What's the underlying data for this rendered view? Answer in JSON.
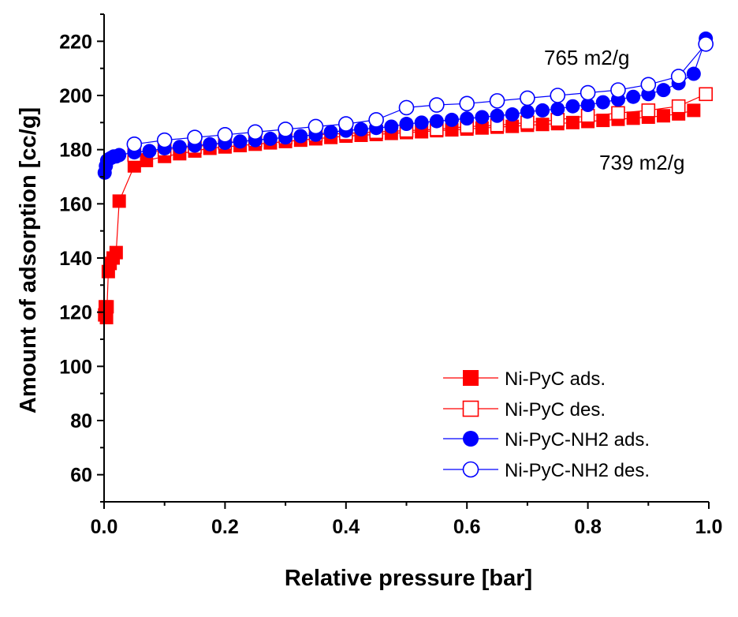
{
  "chart_data": {
    "type": "scatter",
    "title": "",
    "xlabel": "Relative pressure [bar]",
    "ylabel": "Amount of adsorption [cc/g]",
    "xlim": [
      0.0,
      1.0
    ],
    "ylim": [
      50,
      230
    ],
    "xticks": [
      "0.0",
      "0.2",
      "0.4",
      "0.6",
      "0.8",
      "1.0"
    ],
    "xtick_values": [
      0.0,
      0.2,
      0.4,
      0.6,
      0.8,
      1.0
    ],
    "yticks": [
      "60",
      "80",
      "100",
      "120",
      "140",
      "160",
      "180",
      "200",
      "220"
    ],
    "ytick_values": [
      60,
      80,
      100,
      120,
      140,
      160,
      180,
      200,
      220
    ],
    "grid": false,
    "legend_position": "bottom-right",
    "annotations": [
      {
        "text": "765 m2/g",
        "x": 0.73,
        "y": 213
      },
      {
        "text": "739 m2/g",
        "x": 0.82,
        "y": 175
      }
    ],
    "series": [
      {
        "name": "Ni-PyC ads.",
        "color": "#ff0000",
        "marker": "square-filled",
        "x": [
          0.001,
          0.002,
          0.004,
          0.005,
          0.007,
          0.01,
          0.015,
          0.02,
          0.025,
          0.05,
          0.07,
          0.1,
          0.125,
          0.15,
          0.175,
          0.2,
          0.225,
          0.25,
          0.275,
          0.3,
          0.325,
          0.35,
          0.375,
          0.4,
          0.425,
          0.45,
          0.475,
          0.5,
          0.525,
          0.55,
          0.575,
          0.6,
          0.625,
          0.65,
          0.675,
          0.7,
          0.725,
          0.75,
          0.775,
          0.8,
          0.825,
          0.85,
          0.875,
          0.9,
          0.925,
          0.95,
          0.975
        ],
        "y": [
          119,
          122,
          118,
          122,
          135,
          138,
          140,
          142,
          161,
          174,
          176,
          177.5,
          178.5,
          179.5,
          180.5,
          181,
          181.5,
          182,
          182.5,
          183,
          183.5,
          184,
          184.5,
          185,
          185.3,
          185.6,
          186,
          186.3,
          186.6,
          187,
          187.3,
          187.6,
          188,
          188.3,
          188.6,
          189,
          189.3,
          189.6,
          190,
          190.4,
          190.8,
          191.2,
          191.6,
          192,
          192.5,
          193.2,
          194.5
        ]
      },
      {
        "name": "Ni-PyC des.",
        "color": "#ff0000",
        "marker": "square-open",
        "x": [
          0.995,
          0.95,
          0.9,
          0.85,
          0.8,
          0.75,
          0.7,
          0.65,
          0.6,
          0.55,
          0.5,
          0.45,
          0.4,
          0.35,
          0.3,
          0.25,
          0.2,
          0.15,
          0.1,
          0.05
        ],
        "y": [
          200.5,
          196,
          194.5,
          193.5,
          192.5,
          191,
          190,
          189,
          188.5,
          187.5,
          187,
          186.5,
          186,
          185.5,
          184.5,
          183.5,
          182.5,
          181,
          180,
          178
        ]
      },
      {
        "name": "Ni-PyC-NH2 ads.",
        "color": "#0000ff",
        "marker": "circle-filled",
        "x": [
          0.001,
          0.003,
          0.005,
          0.008,
          0.012,
          0.016,
          0.02,
          0.025,
          0.05,
          0.075,
          0.1,
          0.125,
          0.15,
          0.175,
          0.2,
          0.225,
          0.25,
          0.275,
          0.3,
          0.325,
          0.35,
          0.375,
          0.4,
          0.425,
          0.45,
          0.475,
          0.5,
          0.525,
          0.55,
          0.575,
          0.6,
          0.625,
          0.65,
          0.675,
          0.7,
          0.725,
          0.75,
          0.775,
          0.8,
          0.825,
          0.85,
          0.875,
          0.9,
          0.925,
          0.95,
          0.975,
          0.995
        ],
        "y": [
          171.5,
          174,
          176,
          176.5,
          177,
          177.5,
          177.5,
          178,
          179,
          179.5,
          180.5,
          181,
          181.5,
          182,
          182.5,
          183,
          183.5,
          184,
          184.5,
          185,
          185.5,
          186.5,
          187,
          187.5,
          188,
          188.5,
          189.5,
          190,
          190.5,
          191,
          191.5,
          192,
          192.5,
          193,
          194,
          194.5,
          195,
          196,
          196.5,
          197.5,
          198.5,
          199.5,
          200.5,
          202,
          204.5,
          208,
          221
        ]
      },
      {
        "name": "Ni-PyC-NH2 des.",
        "color": "#0000ff",
        "marker": "circle-open",
        "x": [
          0.995,
          0.95,
          0.9,
          0.85,
          0.8,
          0.75,
          0.7,
          0.65,
          0.6,
          0.55,
          0.5,
          0.45,
          0.4,
          0.35,
          0.3,
          0.25,
          0.2,
          0.15,
          0.1,
          0.05
        ],
        "y": [
          219,
          207,
          204,
          202,
          201,
          200,
          199,
          198,
          197,
          196.5,
          195.5,
          191,
          189.5,
          188.5,
          187.5,
          186.5,
          185.5,
          184.5,
          183.5,
          182
        ]
      }
    ]
  }
}
